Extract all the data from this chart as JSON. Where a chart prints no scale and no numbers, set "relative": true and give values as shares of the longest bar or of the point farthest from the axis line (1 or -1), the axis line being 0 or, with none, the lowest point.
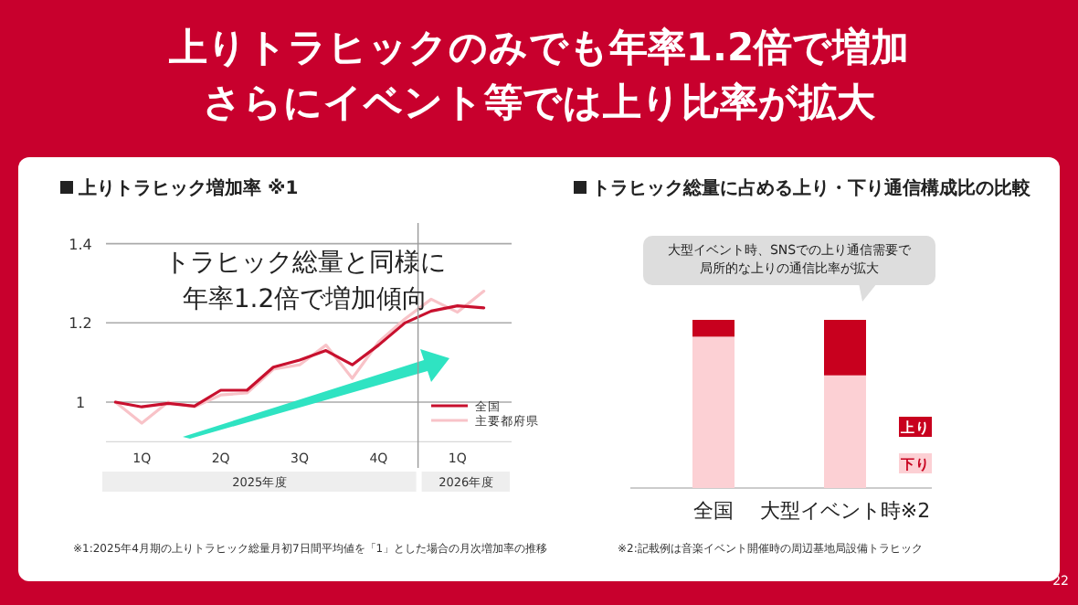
{
  "chart_data": [
    {
      "type": "other",
      "title": "上りトラヒックのみでも年率1.2倍で増加",
      "subtitle": "さらにイベント等では上り比率が拡大",
      "annotations": [
        "22"
      ]
    },
    {
      "type": "line",
      "title": "上りトラヒック増加率 ※1",
      "ylim": [
        0.9,
        1.4
      ],
      "yticks": [
        1,
        1.2,
        1.4
      ],
      "categories": [
        null,
        "1Q",
        null,
        null,
        "2Q",
        null,
        null,
        "3Q",
        null,
        null,
        "4Q",
        null,
        null,
        "1Q",
        null
      ],
      "grid": "y",
      "legend": "bottom right",
      "marker": "none",
      "line_style": "solid",
      "series": [
        {
          "name": "全国",
          "color": "#c8102e",
          "values": [
            1.0,
            0.988,
            0.997,
            0.99,
            1.03,
            1.03,
            1.088,
            1.106,
            1.13,
            1.094,
            1.144,
            1.2,
            1.23,
            1.243,
            1.238
          ]
        },
        {
          "name": "主要都府県",
          "color": "#f8c3c8",
          "values": [
            1.0,
            0.947,
            1.0,
            0.988,
            1.018,
            1.023,
            1.083,
            1.094,
            1.144,
            1.06,
            1.152,
            1.21,
            1.26,
            1.227,
            1.28
          ]
        }
      ],
      "annotations": [
        "トラヒック総量と同様に年率1.2倍で増加傾向",
        "2025年度",
        "2026年度",
        "※1:2025年4月期の上りトラヒック総量月初7日間平均値を「1」とした場合の月次増加率の推移"
      ]
    },
    {
      "type": "bar",
      "stacked": true,
      "relative": true,
      "title": "トラヒック総量に占める上り・下り通信構成比の比較",
      "categories": [
        "全国",
        "大型イベント時※2"
      ],
      "legend": "right",
      "series": [
        {
          "name": "下り",
          "color": "#fcd0d4",
          "values": [
            0.9,
            0.67
          ]
        },
        {
          "name": "上り",
          "color": "#c8001e",
          "values": [
            0.1,
            0.33
          ]
        }
      ],
      "annotations": [
        "大型イベント時、SNSでの上り通信需要で局所的な上りの通信比率が拡大",
        "※2:記載例は音楽イベント開催時の周辺基地局設備トラヒック"
      ]
    }
  ]
}
